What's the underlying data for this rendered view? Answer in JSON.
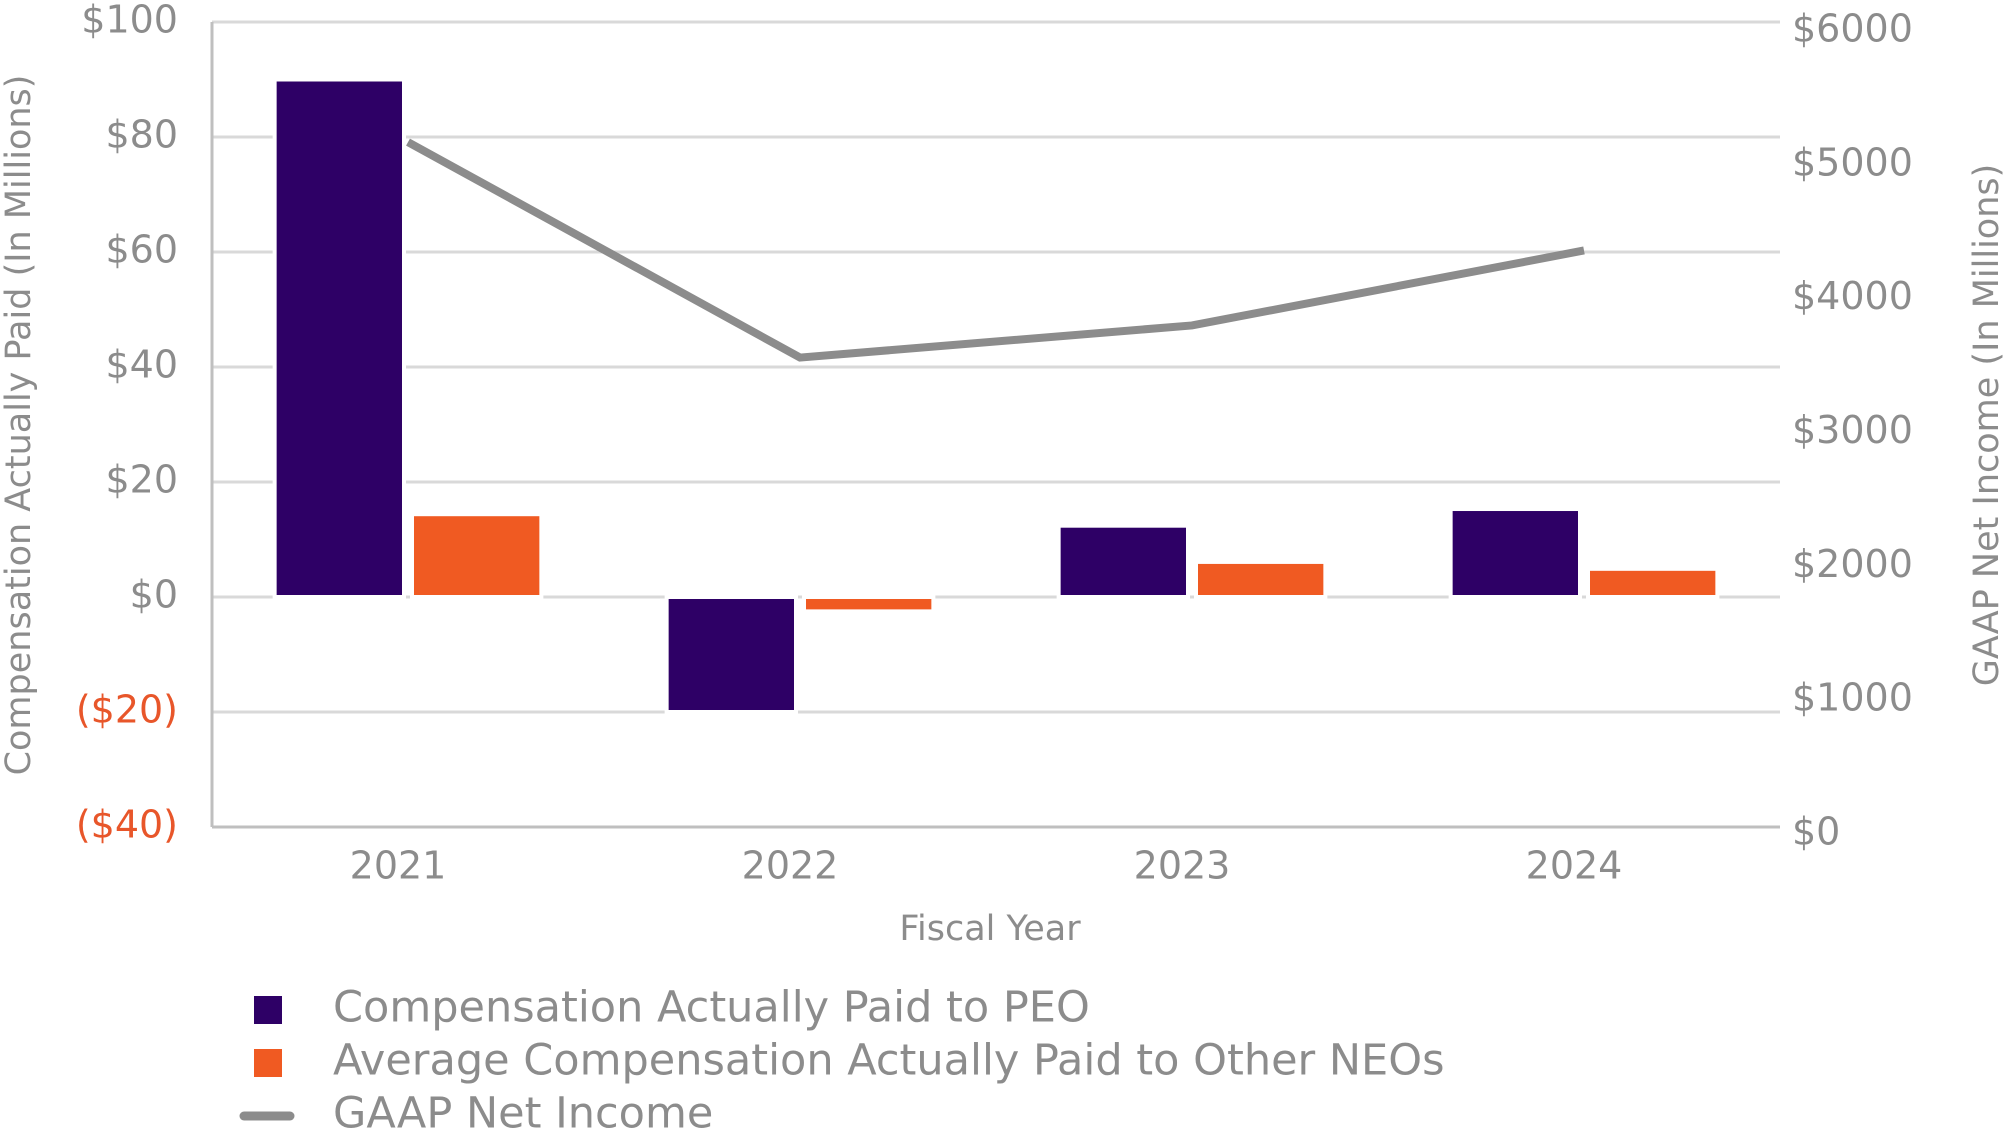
{
  "chart_data": {
    "type": "bar",
    "categories": [
      "2021",
      "2022",
      "2023",
      "2024"
    ],
    "series": [
      {
        "name": "Compensation Actually Paid to PEO",
        "type": "bar",
        "color": "#2e0066",
        "values": [
          90,
          -20,
          12.4,
          15.3
        ]
      },
      {
        "name": "Average Compensation Actually Paid to Other NEOs",
        "type": "bar",
        "color": "#f05a22",
        "values": [
          14.4,
          -2.5,
          6.1,
          4.9
        ]
      },
      {
        "name": "GAAP Net Income",
        "type": "line",
        "color": "#8c8c8c",
        "axis": "y2",
        "values": [
          5170,
          3560,
          3800,
          4360
        ]
      }
    ],
    "ylim": [
      -40,
      100
    ],
    "yticks": [
      {
        "value": -40,
        "label": "($40)"
      },
      {
        "value": -20,
        "label": "($20)"
      },
      {
        "value": 0,
        "label": "$0"
      },
      {
        "value": 20,
        "label": "$20"
      },
      {
        "value": 40,
        "label": "$40"
      },
      {
        "value": 60,
        "label": "$60"
      },
      {
        "value": 80,
        "label": "$80"
      },
      {
        "value": 100,
        "label": "$100"
      }
    ],
    "y2lim": [
      0,
      6000
    ],
    "y2ticks": [
      {
        "value": 0,
        "label": "$0"
      },
      {
        "value": 1000,
        "label": "$1000"
      },
      {
        "value": 2000,
        "label": "$2000"
      },
      {
        "value": 3000,
        "label": "$3000"
      },
      {
        "value": 4000,
        "label": "$4000"
      },
      {
        "value": 5000,
        "label": "$5000"
      },
      {
        "value": 6000,
        "label": "$6000"
      }
    ],
    "xlabel": "Fiscal Year",
    "ylabel": "Compensation Actually Paid (In Millions)",
    "y2label": "GAAP Net Income (In Millions)",
    "negative_tick_color": "#e8562a",
    "grid": true,
    "legend": "bottom"
  }
}
